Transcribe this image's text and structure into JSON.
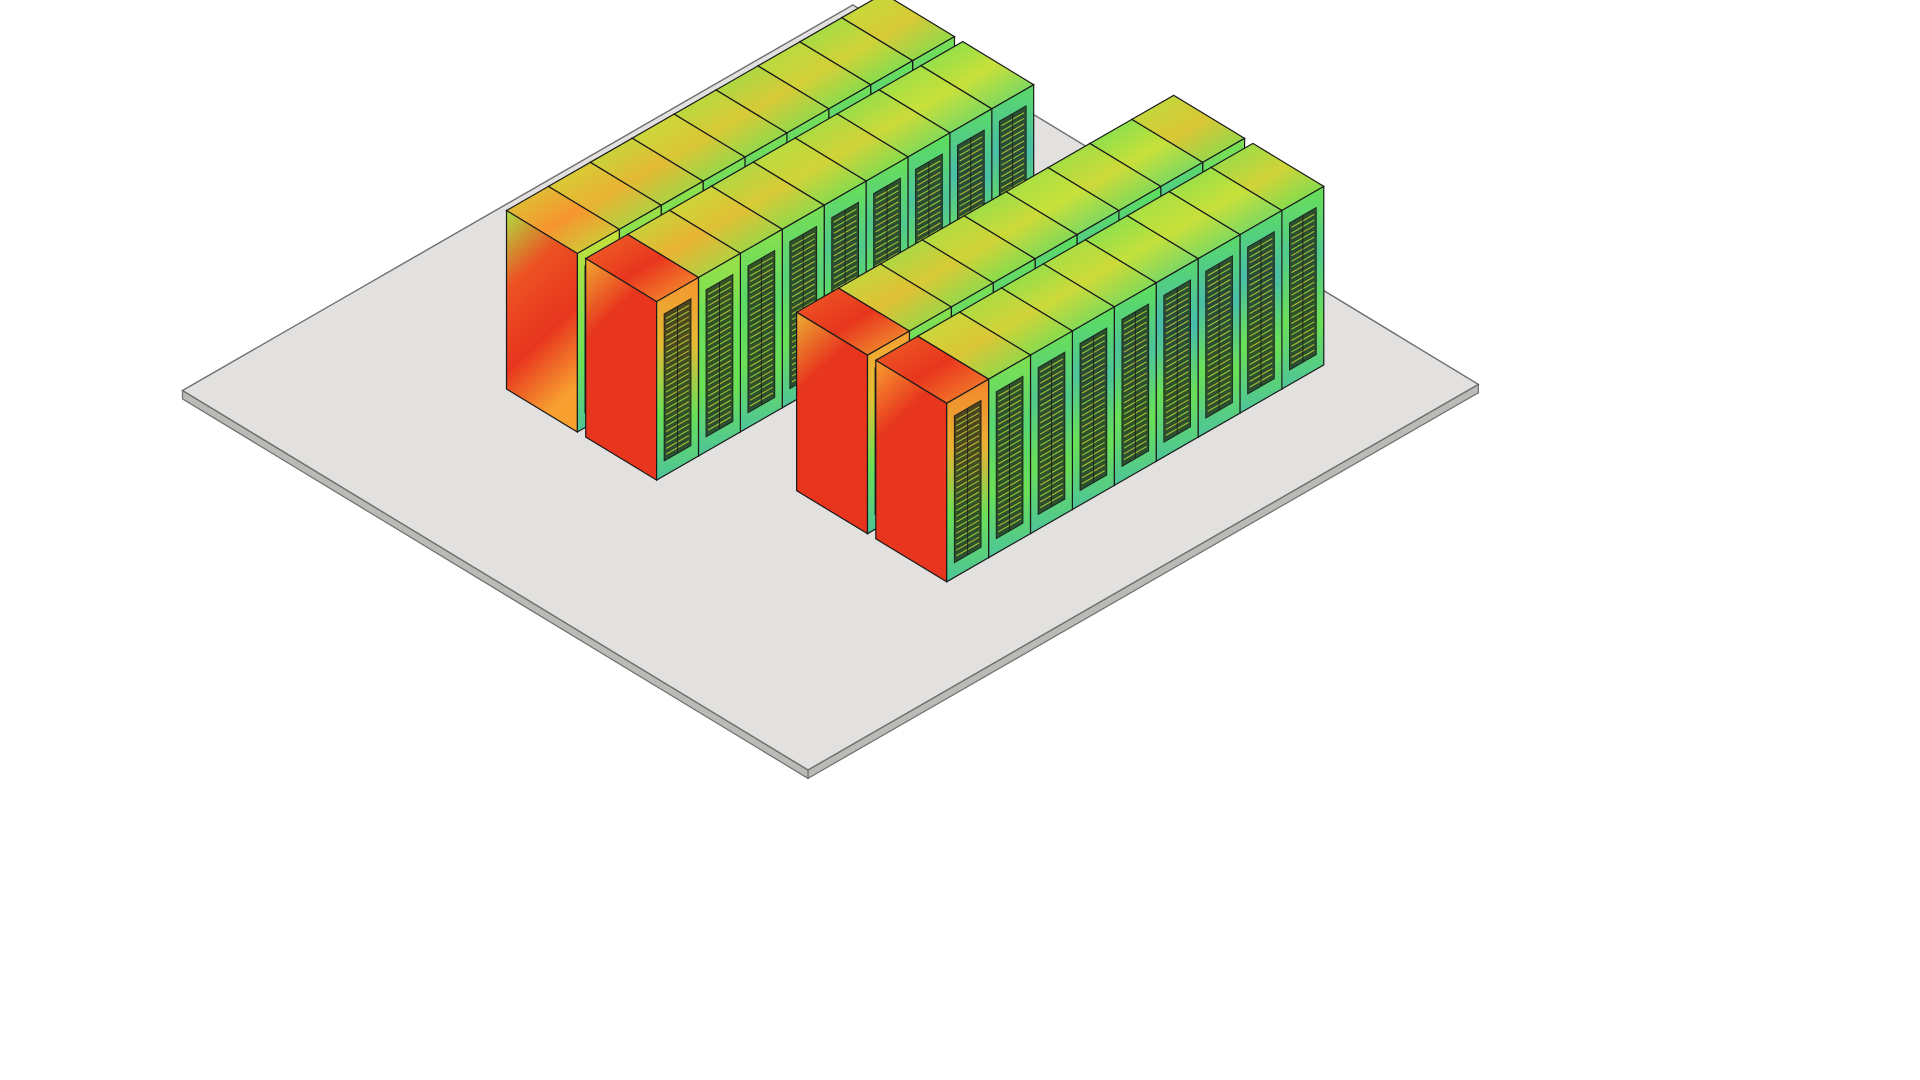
{
  "scene": {
    "background_color": "#ffffff",
    "floor": {
      "fill_color": "#e2e1df",
      "edge_color": "#bcbab7",
      "outline_color": "#6e6e6e"
    },
    "rack_outline_color": "#1a1a1a",
    "vent_color": "#1e2a1a"
  },
  "colormap": {
    "name": "temperature-rainbow",
    "stops": [
      "#3a3ab8",
      "#3aa8d8",
      "#5fe05a",
      "#c8e03a",
      "#f7a030",
      "#e8361e"
    ]
  },
  "layout": {
    "aisles": 2,
    "rows_per_aisle": 2,
    "racks_per_row": 9
  },
  "racks": {
    "count": 36,
    "temperature_levels": [
      [
        0.7,
        0.62,
        0.6,
        0.56,
        0.55,
        0.55,
        0.53,
        0.52,
        0.55
      ],
      [
        0.92,
        0.62,
        0.58,
        0.55,
        0.52,
        0.52,
        0.5,
        0.48,
        0.48
      ],
      [
        0.9,
        0.58,
        0.55,
        0.52,
        0.5,
        0.48,
        0.5,
        0.48,
        0.56
      ],
      [
        0.95,
        0.56,
        0.52,
        0.5,
        0.5,
        0.47,
        0.48,
        0.48,
        0.52
      ]
    ]
  }
}
